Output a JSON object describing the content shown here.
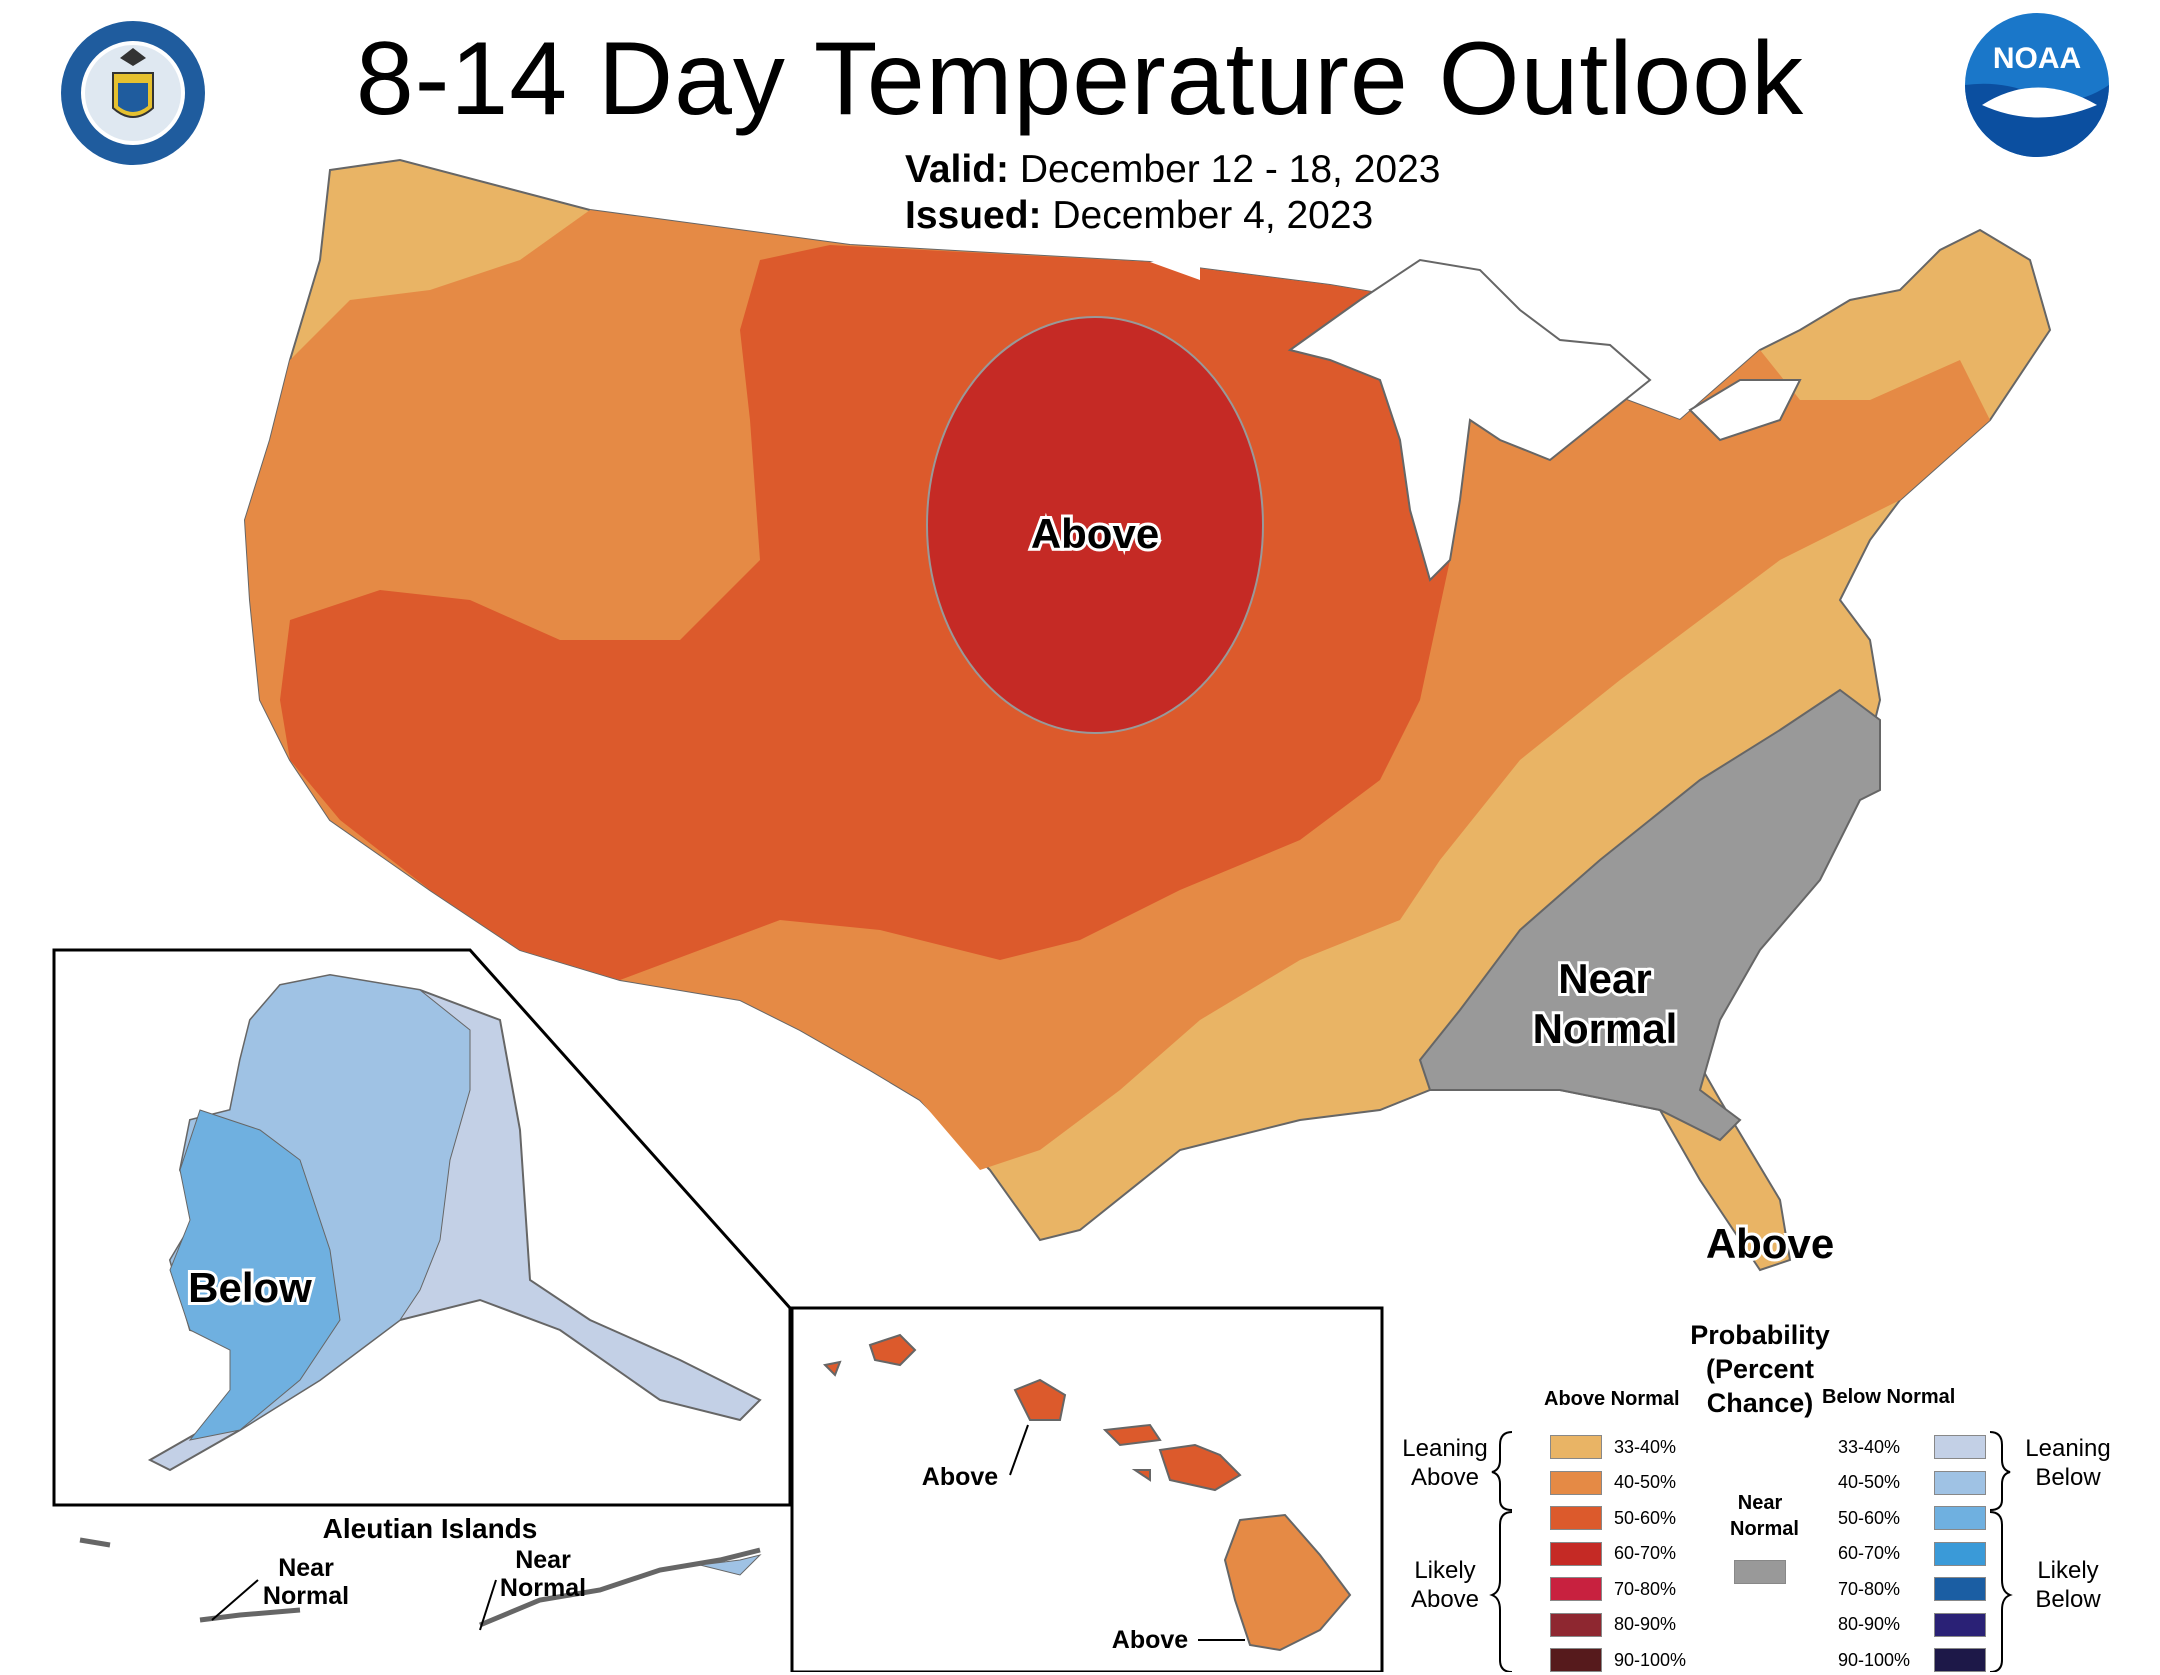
{
  "header": {
    "title": "8-14 Day Temperature Outlook",
    "valid_label": "Valid:",
    "valid_value": "December 12 - 18, 2023",
    "issued_label": "Issued:",
    "issued_value": "December 4, 2023"
  },
  "logos": {
    "commerce_seal": "department-of-commerce-seal",
    "noaa": "NOAA"
  },
  "map_labels": {
    "conus_above_center": "Above",
    "conus_near_normal_line1": "Near",
    "conus_near_normal_line2": "Normal",
    "conus_above_florida": "Above",
    "alaska": "Below",
    "aleutian_title": "Aleutian Islands",
    "aleutian_near1_line1": "Near",
    "aleutian_near1_line2": "Normal",
    "aleutian_near2_line1": "Near",
    "aleutian_near2_line2": "Normal",
    "hawaii_above1": "Above",
    "hawaii_above2": "Above"
  },
  "legend": {
    "title_line1": "Probability",
    "title_line2": "(Percent Chance)",
    "above_header": "Above Normal",
    "below_header": "Below Normal",
    "near_header_line1": "Near",
    "near_header_line2": "Normal",
    "leaning_above_line1": "Leaning",
    "leaning_above_line2": "Above",
    "likely_above_line1": "Likely",
    "likely_above_line2": "Above",
    "leaning_below_line1": "Leaning",
    "leaning_below_line2": "Below",
    "likely_below_line1": "Likely",
    "likely_below_line2": "Below",
    "above_rows": [
      {
        "label": "33-40%",
        "color": "#e9b465"
      },
      {
        "label": "40-50%",
        "color": "#e58a45"
      },
      {
        "label": "50-60%",
        "color": "#dc5a2c"
      },
      {
        "label": "60-70%",
        "color": "#c52a25"
      },
      {
        "label": "70-80%",
        "color": "#c8213f"
      },
      {
        "label": "80-90%",
        "color": "#8e2730"
      },
      {
        "label": "90-100%",
        "color": "#561a1c"
      }
    ],
    "below_rows": [
      {
        "label": "33-40%",
        "color": "#c3d0e6"
      },
      {
        "label": "40-50%",
        "color": "#9fc2e4"
      },
      {
        "label": "50-60%",
        "color": "#6fb0e0"
      },
      {
        "label": "60-70%",
        "color": "#3a9ad8"
      },
      {
        "label": "70-80%",
        "color": "#1b5ea3"
      },
      {
        "label": "80-90%",
        "color": "#2a2176"
      },
      {
        "label": "90-100%",
        "color": "#1d1848"
      }
    ],
    "near_color": "#999999"
  }
}
